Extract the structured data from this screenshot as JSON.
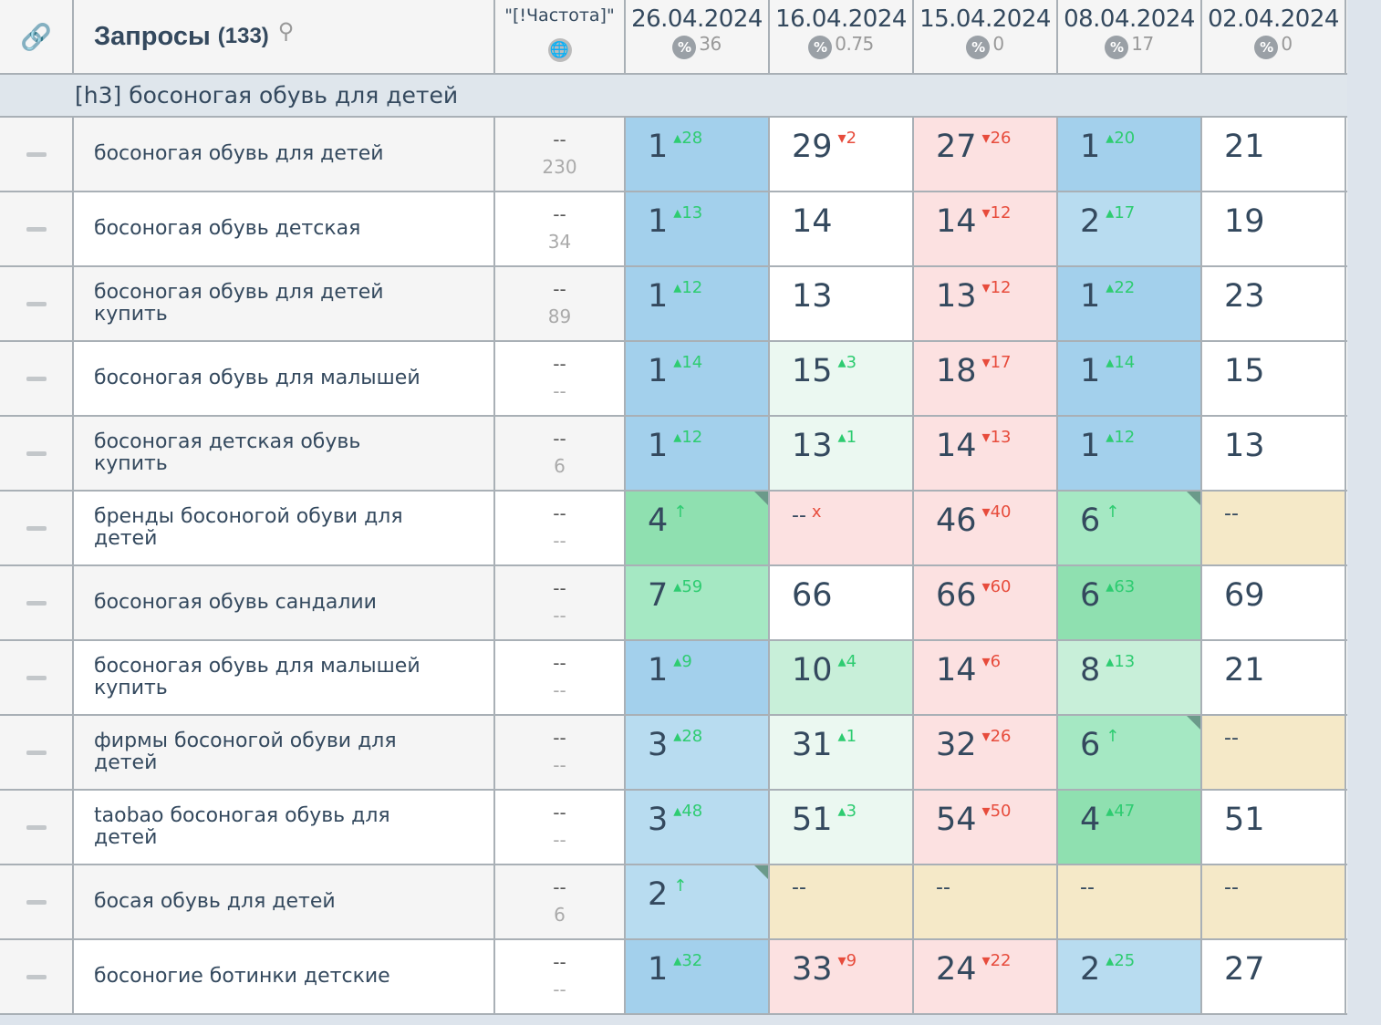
{
  "header": {
    "link_icon": "link-icon",
    "title": "Запросы",
    "count": "(133)",
    "search_icon": "search-icon",
    "freq_label": "\"[!Частота]\"",
    "globe_icon": "globe-icon",
    "dates": [
      {
        "date": "26.04.2024",
        "pct": "36"
      },
      {
        "date": "16.04.2024",
        "pct": "0.75"
      },
      {
        "date": "15.04.2024",
        "pct": "0"
      },
      {
        "date": "08.04.2024",
        "pct": "17"
      },
      {
        "date": "02.04.2024",
        "pct": "0"
      }
    ]
  },
  "group": {
    "label": "[h3] босоногая обувь для детей"
  },
  "colors": {
    "blue": "#a3d0ec",
    "lblue": "#b8dcf0",
    "pink": "#fce1e1",
    "lgreen": "#ebf8f1",
    "green": "#8fe0b0",
    "mint": "#a5e8c3",
    "pgreen": "#c8efd9",
    "beige": "#f5e9c8",
    "white": "#ffffff"
  },
  "rows": [
    {
      "q": "босоногая обувь для детей",
      "f1": "--",
      "f2": "230",
      "cells": [
        {
          "v": "1",
          "d": "28",
          "dir": "up",
          "bg": "blue"
        },
        {
          "v": "29",
          "d": "2",
          "dir": "dn",
          "bg": "white"
        },
        {
          "v": "27",
          "d": "26",
          "dir": "dn",
          "bg": "pink"
        },
        {
          "v": "1",
          "d": "20",
          "dir": "up",
          "bg": "blue"
        },
        {
          "v": "21",
          "bg": "white"
        }
      ]
    },
    {
      "q": "босоногая обувь детская",
      "f1": "--",
      "f2": "34",
      "cells": [
        {
          "v": "1",
          "d": "13",
          "dir": "up",
          "bg": "blue"
        },
        {
          "v": "14",
          "bg": "white"
        },
        {
          "v": "14",
          "d": "12",
          "dir": "dn",
          "bg": "pink"
        },
        {
          "v": "2",
          "d": "17",
          "dir": "up",
          "bg": "lblue"
        },
        {
          "v": "19",
          "bg": "white"
        }
      ]
    },
    {
      "q": "босоногая обувь для детей купить",
      "f1": "--",
      "f2": "89",
      "cells": [
        {
          "v": "1",
          "d": "12",
          "dir": "up",
          "bg": "blue"
        },
        {
          "v": "13",
          "bg": "white"
        },
        {
          "v": "13",
          "d": "12",
          "dir": "dn",
          "bg": "pink"
        },
        {
          "v": "1",
          "d": "22",
          "dir": "up",
          "bg": "blue"
        },
        {
          "v": "23",
          "bg": "white"
        }
      ]
    },
    {
      "q": "босоногая обувь для малышей",
      "f1": "--",
      "f2": "--",
      "cells": [
        {
          "v": "1",
          "d": "14",
          "dir": "up",
          "bg": "blue"
        },
        {
          "v": "15",
          "d": "3",
          "dir": "up",
          "bg": "lgreen"
        },
        {
          "v": "18",
          "d": "17",
          "dir": "dn",
          "bg": "pink"
        },
        {
          "v": "1",
          "d": "14",
          "dir": "up",
          "bg": "blue"
        },
        {
          "v": "15",
          "bg": "white"
        }
      ]
    },
    {
      "q": "босоногая детская обувь купить",
      "f1": "--",
      "f2": "6",
      "cells": [
        {
          "v": "1",
          "d": "12",
          "dir": "up",
          "bg": "blue"
        },
        {
          "v": "13",
          "d": "1",
          "dir": "up",
          "bg": "lgreen"
        },
        {
          "v": "14",
          "d": "13",
          "dir": "dn",
          "bg": "pink"
        },
        {
          "v": "1",
          "d": "12",
          "dir": "up",
          "bg": "blue"
        },
        {
          "v": "13",
          "bg": "white"
        }
      ]
    },
    {
      "q": "бренды босоногой обуви для детей",
      "f1": "--",
      "f2": "--",
      "cells": [
        {
          "v": "4",
          "d": "↑",
          "dir": "new",
          "bg": "green",
          "corner": true
        },
        {
          "v": "--",
          "d": "x",
          "dir": "lost",
          "bg": "pink"
        },
        {
          "v": "46",
          "d": "40",
          "dir": "dn",
          "bg": "pink"
        },
        {
          "v": "6",
          "d": "↑",
          "dir": "new",
          "bg": "mint",
          "corner": true
        },
        {
          "v": "--",
          "bg": "beige"
        }
      ]
    },
    {
      "q": "босоногая обувь сандалии",
      "f1": "--",
      "f2": "--",
      "cells": [
        {
          "v": "7",
          "d": "59",
          "dir": "up",
          "bg": "mint"
        },
        {
          "v": "66",
          "bg": "white"
        },
        {
          "v": "66",
          "d": "60",
          "dir": "dn",
          "bg": "pink"
        },
        {
          "v": "6",
          "d": "63",
          "dir": "up",
          "bg": "green"
        },
        {
          "v": "69",
          "bg": "white"
        }
      ]
    },
    {
      "q": "босоногая обувь для малышей купить",
      "f1": "--",
      "f2": "--",
      "cells": [
        {
          "v": "1",
          "d": "9",
          "dir": "up",
          "bg": "blue"
        },
        {
          "v": "10",
          "d": "4",
          "dir": "up",
          "bg": "pgreen"
        },
        {
          "v": "14",
          "d": "6",
          "dir": "dn",
          "bg": "pink"
        },
        {
          "v": "8",
          "d": "13",
          "dir": "up",
          "bg": "pgreen"
        },
        {
          "v": "21",
          "bg": "white"
        }
      ]
    },
    {
      "q": "фирмы босоногой обуви для детей",
      "f1": "--",
      "f2": "--",
      "cells": [
        {
          "v": "3",
          "d": "28",
          "dir": "up",
          "bg": "lblue"
        },
        {
          "v": "31",
          "d": "1",
          "dir": "up",
          "bg": "lgreen"
        },
        {
          "v": "32",
          "d": "26",
          "dir": "dn",
          "bg": "pink"
        },
        {
          "v": "6",
          "d": "↑",
          "dir": "new",
          "bg": "mint",
          "corner": true
        },
        {
          "v": "--",
          "bg": "beige"
        }
      ]
    },
    {
      "q": "taobao босоногая обувь для детей",
      "f1": "--",
      "f2": "--",
      "cells": [
        {
          "v": "3",
          "d": "48",
          "dir": "up",
          "bg": "lblue"
        },
        {
          "v": "51",
          "d": "3",
          "dir": "up",
          "bg": "lgreen"
        },
        {
          "v": "54",
          "d": "50",
          "dir": "dn",
          "bg": "pink"
        },
        {
          "v": "4",
          "d": "47",
          "dir": "up",
          "bg": "green"
        },
        {
          "v": "51",
          "bg": "white"
        }
      ]
    },
    {
      "q": "босая обувь для детей",
      "f1": "--",
      "f2": "6",
      "cells": [
        {
          "v": "2",
          "d": "↑",
          "dir": "new",
          "bg": "lblue",
          "corner": true
        },
        {
          "v": "--",
          "bg": "beige"
        },
        {
          "v": "--",
          "bg": "beige"
        },
        {
          "v": "--",
          "bg": "beige"
        },
        {
          "v": "--",
          "bg": "beige"
        }
      ]
    },
    {
      "q": "босоногие ботинки детские",
      "f1": "--",
      "f2": "--",
      "cells": [
        {
          "v": "1",
          "d": "32",
          "dir": "up",
          "bg": "blue"
        },
        {
          "v": "33",
          "d": "9",
          "dir": "dn",
          "bg": "pink"
        },
        {
          "v": "24",
          "d": "22",
          "dir": "dn",
          "bg": "pink"
        },
        {
          "v": "2",
          "d": "25",
          "dir": "up",
          "bg": "lblue"
        },
        {
          "v": "27",
          "bg": "white"
        }
      ]
    }
  ]
}
